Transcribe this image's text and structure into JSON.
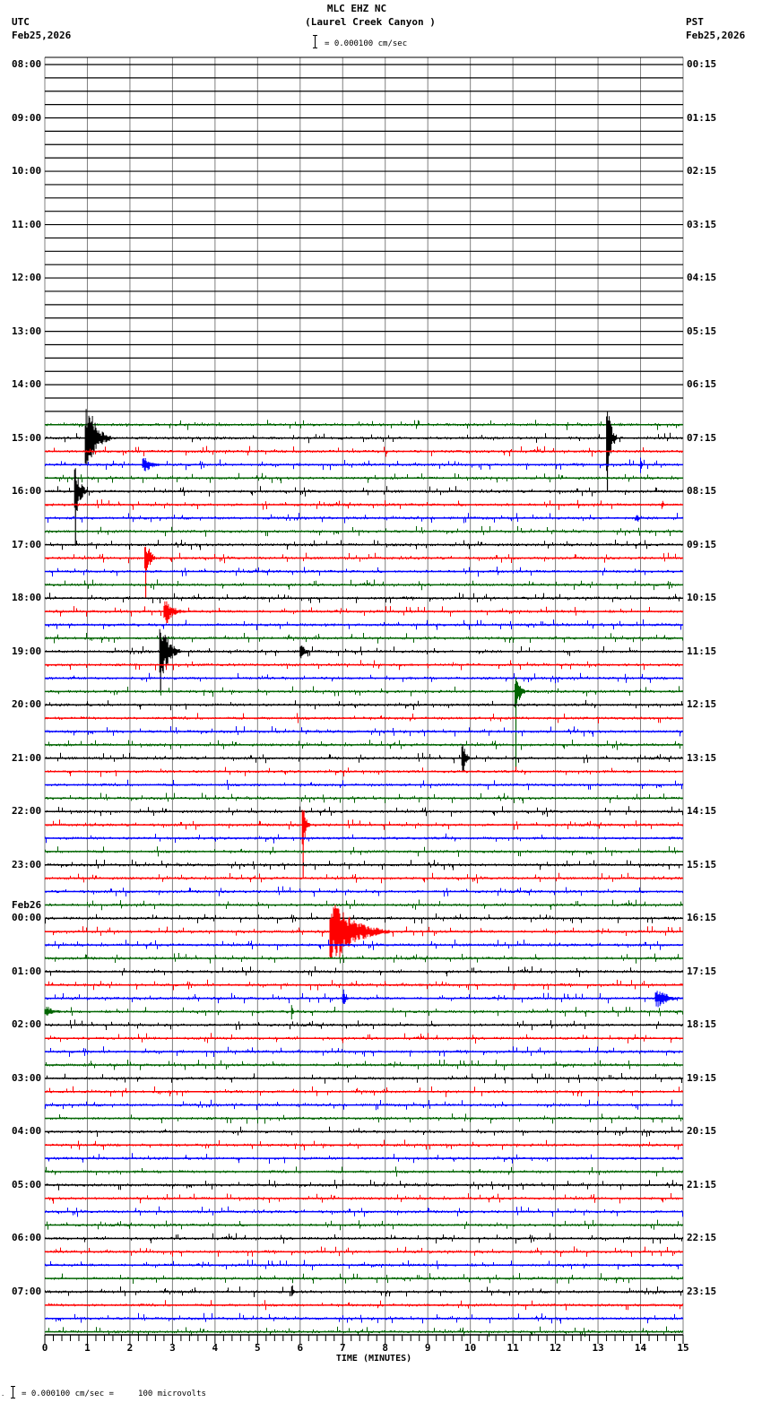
{
  "header": {
    "station": "MLC EHZ NC",
    "location": "(Laurel Creek Canyon )",
    "left_tz": "UTC",
    "left_date": "Feb25,2026",
    "right_tz": "PST",
    "right_date": "Feb25,2026",
    "scale_label": "= 0.000100 cm/sec"
  },
  "footer": {
    "scale_note": "= 0.000100 cm/sec =     100 microvolts",
    "x_axis_label": "TIME (MINUTES)"
  },
  "colors": {
    "trace_cycle": [
      "#000000",
      "#ff0000",
      "#0000ff",
      "#006400"
    ],
    "grid": "#808080",
    "frame": "#000000"
  },
  "chart_data": {
    "type": "line",
    "title": "MLC EHZ NC (Laurel Creek Canyon )",
    "subtitle": "helicorder 24h seismogram, 15-minute rows",
    "xlabel": "TIME (MINUTES)",
    "ylabel": "",
    "xlim": [
      0,
      15
    ],
    "x_ticks": [
      "0",
      "1",
      "2",
      "3",
      "4",
      "5",
      "6",
      "7",
      "8",
      "9",
      "10",
      "11",
      "12",
      "13",
      "14",
      "15"
    ],
    "grid": true,
    "rows_per_hour": 4,
    "total_rows": 96,
    "first_trace_row": 27,
    "utc_labels": [
      {
        "row": 0,
        "text": "08:00"
      },
      {
        "row": 4,
        "text": "09:00"
      },
      {
        "row": 8,
        "text": "10:00"
      },
      {
        "row": 12,
        "text": "11:00"
      },
      {
        "row": 16,
        "text": "12:00"
      },
      {
        "row": 20,
        "text": "13:00"
      },
      {
        "row": 24,
        "text": "14:00"
      },
      {
        "row": 28,
        "text": "15:00"
      },
      {
        "row": 32,
        "text": "16:00"
      },
      {
        "row": 36,
        "text": "17:00"
      },
      {
        "row": 40,
        "text": "18:00"
      },
      {
        "row": 44,
        "text": "19:00"
      },
      {
        "row": 48,
        "text": "20:00"
      },
      {
        "row": 52,
        "text": "21:00"
      },
      {
        "row": 56,
        "text": "22:00"
      },
      {
        "row": 60,
        "text": "23:00"
      },
      {
        "row": 64,
        "text": "00:00",
        "date": "Feb26"
      },
      {
        "row": 68,
        "text": "01:00"
      },
      {
        "row": 72,
        "text": "02:00"
      },
      {
        "row": 76,
        "text": "03:00"
      },
      {
        "row": 80,
        "text": "04:00"
      },
      {
        "row": 84,
        "text": "05:00"
      },
      {
        "row": 88,
        "text": "06:00"
      },
      {
        "row": 92,
        "text": "07:00"
      }
    ],
    "pst_labels": [
      {
        "row": 0,
        "text": "00:15"
      },
      {
        "row": 4,
        "text": "01:15"
      },
      {
        "row": 8,
        "text": "02:15"
      },
      {
        "row": 12,
        "text": "03:15"
      },
      {
        "row": 16,
        "text": "04:15"
      },
      {
        "row": 20,
        "text": "05:15"
      },
      {
        "row": 24,
        "text": "06:15"
      },
      {
        "row": 28,
        "text": "07:15"
      },
      {
        "row": 32,
        "text": "08:15"
      },
      {
        "row": 36,
        "text": "09:15"
      },
      {
        "row": 40,
        "text": "10:15"
      },
      {
        "row": 44,
        "text": "11:15"
      },
      {
        "row": 48,
        "text": "12:15"
      },
      {
        "row": 52,
        "text": "13:15"
      },
      {
        "row": 56,
        "text": "14:15"
      },
      {
        "row": 60,
        "text": "15:15"
      },
      {
        "row": 64,
        "text": "16:15"
      },
      {
        "row": 68,
        "text": "17:15"
      },
      {
        "row": 72,
        "text": "18:15"
      },
      {
        "row": 76,
        "text": "19:15"
      },
      {
        "row": 80,
        "text": "20:15"
      },
      {
        "row": 84,
        "text": "21:15"
      },
      {
        "row": 88,
        "text": "22:15"
      },
      {
        "row": 92,
        "text": "23:15"
      }
    ],
    "events": [
      {
        "row": 28,
        "minute": 0.95,
        "amp": 38,
        "dur": 0.6,
        "tail_rows": 2
      },
      {
        "row": 28,
        "minute": 13.2,
        "amp": 42,
        "dur": 0.25,
        "tail_rows": 4
      },
      {
        "row": 30,
        "minute": 2.3,
        "amp": 8,
        "dur": 0.5,
        "tail_rows": 0
      },
      {
        "row": 30,
        "minute": 14.0,
        "amp": 10,
        "dur": 0.05,
        "tail_rows": 0
      },
      {
        "row": 32,
        "minute": 0.7,
        "amp": 30,
        "dur": 0.3,
        "tail_rows": 4
      },
      {
        "row": 33,
        "minute": 14.5,
        "amp": 6,
        "dur": 0.1,
        "tail_rows": 0
      },
      {
        "row": 34,
        "minute": 13.9,
        "amp": 6,
        "dur": 0.15,
        "tail_rows": 0
      },
      {
        "row": 37,
        "minute": 2.35,
        "amp": 20,
        "dur": 0.3,
        "tail_rows": 3
      },
      {
        "row": 41,
        "minute": 2.8,
        "amp": 14,
        "dur": 0.5,
        "tail_rows": 0
      },
      {
        "row": 44,
        "minute": 2.7,
        "amp": 30,
        "dur": 0.5,
        "tail_rows": 3
      },
      {
        "row": 44,
        "minute": 6.0,
        "amp": 8,
        "dur": 0.3,
        "tail_rows": 0
      },
      {
        "row": 47,
        "minute": 11.05,
        "amp": 22,
        "dur": 0.25,
        "tail_rows": 6
      },
      {
        "row": 52,
        "minute": 9.8,
        "amp": 20,
        "dur": 0.2,
        "tail_rows": 1
      },
      {
        "row": 57,
        "minute": 6.05,
        "amp": 25,
        "dur": 0.2,
        "tail_rows": 4
      },
      {
        "row": 65,
        "minute": 6.7,
        "amp": 30,
        "dur": 1.4,
        "tail_rows": 2
      },
      {
        "row": 70,
        "minute": 7.0,
        "amp": 10,
        "dur": 0.15,
        "tail_rows": 0
      },
      {
        "row": 70,
        "minute": 14.35,
        "amp": 10,
        "dur": 0.65,
        "tail_rows": 0
      },
      {
        "row": 71,
        "minute": 0.0,
        "amp": 6,
        "dur": 0.5,
        "tail_rows": 0
      },
      {
        "row": 71,
        "minute": 5.8,
        "amp": 10,
        "dur": 0.05,
        "tail_rows": 0
      },
      {
        "row": 92,
        "minute": 5.8,
        "amp": 10,
        "dur": 0.1,
        "tail_rows": 0
      }
    ]
  }
}
